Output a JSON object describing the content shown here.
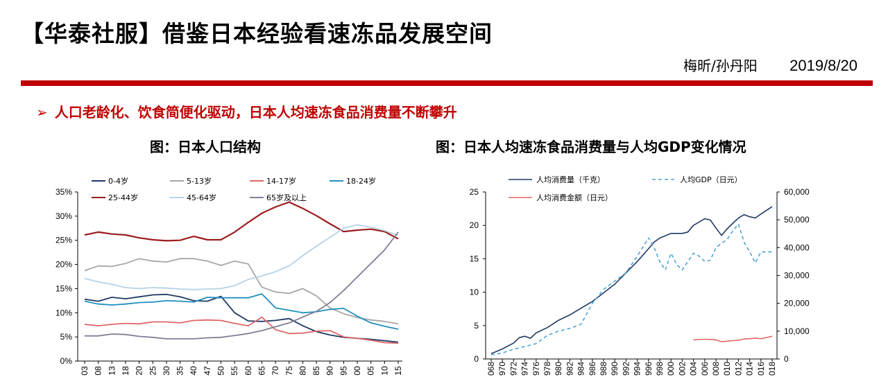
{
  "header": {
    "title": "【华泰社服】借鉴日本经验看速冻品发展空间",
    "authors": "梅昕/孙丹阳",
    "date": "2019/8/20"
  },
  "bullet": {
    "arrow": "➢",
    "text": "人口老龄化、饮食简便化驱动，日本人均速冻食品消费量不断攀升"
  },
  "chart_titles": {
    "left": "图：日本人口结构",
    "right": "图：日本人均速冻食品消费量与人均GDP变化情况"
  },
  "colors": {
    "accent": "#c00000",
    "age_0_4": "#1f3864",
    "age_5_13": "#a6a6a6",
    "age_14_17": "#e06666",
    "age_18_24": "#1f8fbf",
    "age_25_44": "#9c1c1c",
    "age_45_64": "#b4d2e6",
    "age_65": "#7f7f96",
    "consumption": "#1f3864",
    "gdp": "#4ba3d3",
    "amount": "#e06666"
  },
  "chart_data": [
    {
      "type": "line",
      "title": "",
      "x": [
        "03",
        "08",
        "13",
        "18",
        "20",
        "25",
        "30",
        "35",
        "40",
        "47",
        "50",
        "55",
        "60",
        "65",
        "70",
        "75",
        "80",
        "85",
        "90",
        "95",
        "00",
        "05",
        "10",
        "15"
      ],
      "x_tick_labels": [
        "03",
        "08",
        "13",
        "18",
        "20",
        "25",
        "30",
        "35",
        "40",
        "47",
        "50",
        "55",
        "60",
        "65",
        "70",
        "75",
        "80",
        "85",
        "90",
        "95",
        "00",
        "05",
        "10",
        "15"
      ],
      "y_ticks": [
        "0%",
        "5%",
        "10%",
        "15%",
        "20%",
        "25%",
        "30%",
        "35%"
      ],
      "ylim": [
        0,
        35
      ],
      "y_unit": "%",
      "legend_position": "top",
      "series": [
        {
          "name": "0-4岁",
          "color_key": "age_0_4",
          "values": [
            12.8,
            12.4,
            13.2,
            12.9,
            13.3,
            13.7,
            13.8,
            13.3,
            12.5,
            12.4,
            13.4,
            10.0,
            8.3,
            8.2,
            8.4,
            8.8,
            7.3,
            6.1,
            5.4,
            4.9,
            4.7,
            4.5,
            4.2,
            3.9
          ]
        },
        {
          "name": "5-13岁",
          "color_key": "age_5_13",
          "values": [
            18.7,
            19.7,
            19.6,
            20.2,
            21.2,
            20.7,
            20.5,
            21.2,
            21.2,
            20.7,
            19.8,
            20.7,
            20.1,
            15.3,
            14.3,
            14.0,
            15.0,
            13.5,
            11.0,
            9.8,
            9.0,
            8.5,
            8.2,
            7.7
          ]
        },
        {
          "name": "14-17岁",
          "color_key": "age_14_17",
          "values": [
            7.6,
            7.3,
            7.6,
            7.8,
            7.7,
            8.1,
            8.1,
            7.9,
            8.4,
            8.5,
            8.4,
            7.8,
            7.3,
            9.1,
            6.5,
            5.7,
            5.8,
            6.2,
            6.3,
            5.0,
            4.7,
            4.3,
            3.8,
            3.7
          ]
        },
        {
          "name": "18-24岁",
          "color_key": "age_18_24",
          "values": [
            12.4,
            11.8,
            11.6,
            11.8,
            12.1,
            12.2,
            12.5,
            12.4,
            12.2,
            13.2,
            13.1,
            13.1,
            13.1,
            13.9,
            11.0,
            10.5,
            10.0,
            10.2,
            10.7,
            10.9,
            9.3,
            7.9,
            7.2,
            6.6
          ]
        },
        {
          "name": "25-44岁",
          "color_key": "age_25_44",
          "values": [
            26.1,
            26.7,
            26.3,
            26.1,
            25.5,
            25.1,
            24.9,
            25.0,
            25.8,
            25.1,
            25.1,
            26.7,
            28.7,
            30.6,
            31.9,
            32.9,
            31.6,
            30.1,
            28.4,
            26.8,
            27.1,
            27.3,
            26.8,
            25.3
          ]
        },
        {
          "name": "45-64岁",
          "color_key": "age_45_64",
          "values": [
            17.1,
            16.4,
            15.9,
            15.2,
            15.0,
            15.2,
            15.1,
            14.9,
            14.8,
            14.9,
            15.0,
            15.6,
            16.9,
            17.6,
            18.5,
            19.7,
            21.8,
            23.8,
            25.6,
            27.5,
            28.2,
            27.7,
            27.0,
            26.0
          ]
        },
        {
          "name": "65岁及以上",
          "color_key": "age_65",
          "values": [
            5.2,
            5.2,
            5.6,
            5.5,
            5.1,
            4.9,
            4.6,
            4.6,
            4.6,
            4.8,
            4.9,
            5.3,
            5.7,
            6.3,
            7.1,
            7.9,
            9.1,
            10.3,
            12.1,
            14.6,
            17.4,
            20.2,
            23.0,
            26.7
          ]
        }
      ]
    },
    {
      "type": "line",
      "title": "",
      "x": [
        "1968",
        "1970",
        "1972",
        "1974",
        "1976",
        "1978",
        "1980",
        "1982",
        "1984",
        "1986",
        "1988",
        "1990",
        "1992",
        "1994",
        "1996",
        "1998",
        "2000",
        "2002",
        "2004",
        "2006",
        "2008",
        "2010",
        "2012",
        "2014",
        "2016",
        "2018"
      ],
      "x_tick_labels": [
        "068",
        "970",
        "972",
        "974",
        "976",
        "978",
        "980",
        "982",
        "984",
        "986",
        "988",
        "990",
        "992",
        "994",
        "996",
        "998",
        "000",
        "002",
        "004",
        "006",
        "008",
        "010",
        "012",
        "014",
        "016",
        "018"
      ],
      "y_left_ticks": [
        "0",
        "5",
        "10",
        "15",
        "20",
        "25"
      ],
      "y_left_lim": [
        0,
        25
      ],
      "y_right_ticks": [
        "0",
        "10,000",
        "20,000",
        "30,000",
        "40,000",
        "50,000",
        "60,000"
      ],
      "y_right_lim": [
        0,
        60000
      ],
      "legend_position": "top",
      "series": [
        {
          "name": "人均消费量（千克）",
          "axis": "left",
          "style": "solid",
          "color_key": "consumption",
          "x": [
            1968,
            1970,
            1972,
            1973,
            1974,
            1975,
            1976,
            1978,
            1980,
            1982,
            1984,
            1986,
            1988,
            1990,
            1992,
            1994,
            1996,
            1997,
            1998,
            2000,
            2002,
            2003,
            2004,
            2006,
            2007,
            2008,
            2009,
            2010,
            2012,
            2013,
            2014,
            2015,
            2016,
            2018
          ],
          "values": [
            0.8,
            1.5,
            2.4,
            3.2,
            3.4,
            3.1,
            3.9,
            4.7,
            5.8,
            6.6,
            7.6,
            8.6,
            9.9,
            11.2,
            12.9,
            14.6,
            16.5,
            17.5,
            18.1,
            18.8,
            18.8,
            19.0,
            20.0,
            21.0,
            20.8,
            19.6,
            18.5,
            19.5,
            21.1,
            21.6,
            21.3,
            21.1,
            21.7,
            22.8
          ]
        },
        {
          "name": "人均GDP（日元）",
          "axis": "right",
          "style": "dashed",
          "color_key": "gdp",
          "x": [
            1968,
            1970,
            1972,
            1974,
            1976,
            1978,
            1980,
            1982,
            1984,
            1986,
            1988,
            1990,
            1992,
            1994,
            1996,
            1997,
            1998,
            1999,
            2000,
            2001,
            2002,
            2003,
            2004,
            2005,
            2006,
            2007,
            2008,
            2010,
            2011,
            2012,
            2013,
            2014,
            2015,
            2016,
            2018
          ],
          "values": [
            1500,
            2200,
            3500,
            4500,
            5500,
            8500,
            10000,
            11000,
            12500,
            20000,
            25000,
            28000,
            31000,
            37000,
            43500,
            40000,
            35000,
            32000,
            38000,
            34000,
            32000,
            35000,
            38000,
            37000,
            35000,
            35500,
            40000,
            43000,
            46000,
            48500,
            42000,
            38500,
            34500,
            38500,
            38500
          ]
        },
        {
          "name": "人均消费金额（日元）",
          "axis": "right",
          "style": "solid",
          "color_key": "amount",
          "x": [
            2004,
            2006,
            2007,
            2008,
            2009,
            2010,
            2011,
            2012,
            2013,
            2014,
            2015,
            2016,
            2017,
            2018
          ],
          "values": [
            6900,
            7100,
            7000,
            6900,
            6200,
            6400,
            6600,
            6700,
            7200,
            7300,
            7500,
            7300,
            7700,
            8200
          ]
        }
      ]
    }
  ]
}
